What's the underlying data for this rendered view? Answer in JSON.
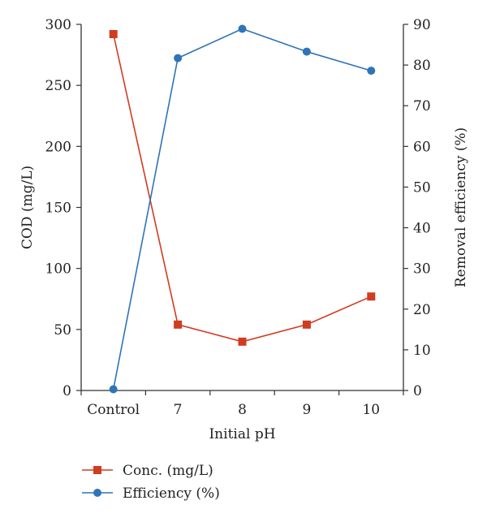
{
  "chart_data": {
    "type": "line",
    "categories": [
      "Control",
      "7",
      "8",
      "9",
      "10"
    ],
    "xlabel": "Initial pH",
    "ylabel": "COD (mg/L)",
    "y2label": "Removal efficiency (%)",
    "ylim": [
      0,
      300
    ],
    "yticks": [
      0,
      50,
      100,
      150,
      200,
      250,
      300
    ],
    "y2lim": [
      0,
      90
    ],
    "y2ticks": [
      0,
      10,
      20,
      30,
      40,
      50,
      60,
      70,
      80,
      90
    ],
    "grid": false,
    "legend_position": "bottom-left",
    "series": [
      {
        "name": "Conc. (mg/L)",
        "axis": "left",
        "marker": "square",
        "color": "#d03c1f",
        "values": [
          292,
          54,
          40,
          54,
          77
        ]
      },
      {
        "name": "Efficiency (%)",
        "axis": "right",
        "marker": "circle",
        "color": "#2e74b8",
        "values": [
          0.3,
          81.7,
          88.9,
          83.3,
          78.6
        ]
      }
    ]
  }
}
